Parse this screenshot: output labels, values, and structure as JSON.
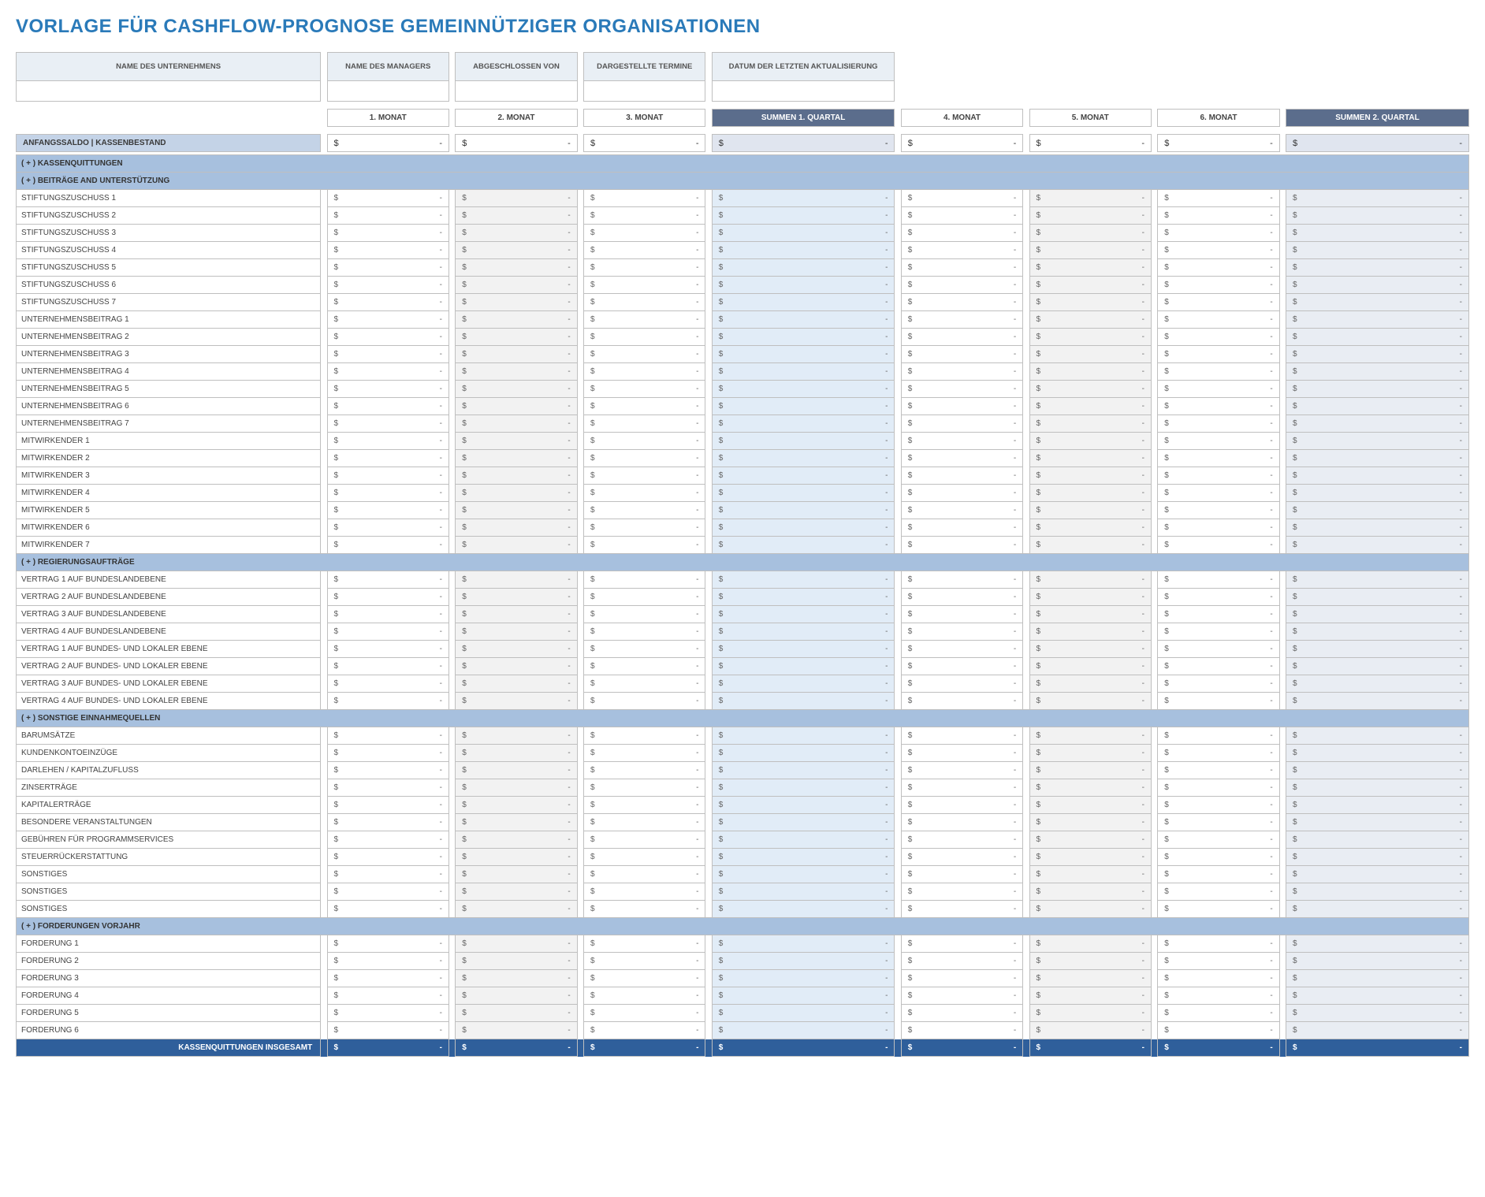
{
  "title": "VORLAGE FÜR CASHFLOW-PROGNOSE GEMEINNÜTZIGER ORGANISATIONEN",
  "meta": {
    "headers": [
      "NAME DES UNTERNEHMENS",
      "NAME DES MANAGERS",
      "ABGESCHLOSSEN VON",
      "DARGESTELLTE TERMINE",
      "DATUM DER LETZTEN AKTUALISIERUNG"
    ],
    "values": [
      "",
      "",
      "",
      "",
      ""
    ]
  },
  "columns": {
    "months_a": [
      "1. MONAT",
      "2. MONAT",
      "3. MONAT"
    ],
    "quarter_a": "SUMMEN 1. QUARTAL",
    "months_b": [
      "4. MONAT",
      "5. MONAT",
      "6. MONAT"
    ],
    "quarter_b": "SUMMEN 2. QUARTAL"
  },
  "anfangssaldo": "ANFANGSSALDO  |  KASSENBESTAND",
  "currency_symbol": "$",
  "dash": "-",
  "sections": [
    {
      "type": "header",
      "label": "( + ) KASSENQUITTUNGEN"
    },
    {
      "type": "header",
      "label": "( + ) BEITRÄGE AND UNTERSTÜTZUNG"
    },
    {
      "type": "row",
      "label": "STIFTUNGSZUSCHUSS 1"
    },
    {
      "type": "row",
      "label": "STIFTUNGSZUSCHUSS 2"
    },
    {
      "type": "row",
      "label": "STIFTUNGSZUSCHUSS 3"
    },
    {
      "type": "row",
      "label": "STIFTUNGSZUSCHUSS 4"
    },
    {
      "type": "row",
      "label": "STIFTUNGSZUSCHUSS 5"
    },
    {
      "type": "row",
      "label": "STIFTUNGSZUSCHUSS 6"
    },
    {
      "type": "row",
      "label": "STIFTUNGSZUSCHUSS 7"
    },
    {
      "type": "row",
      "label": "UNTERNEHMENSBEITRAG 1"
    },
    {
      "type": "row",
      "label": "UNTERNEHMENSBEITRAG 2"
    },
    {
      "type": "row",
      "label": "UNTERNEHMENSBEITRAG 3"
    },
    {
      "type": "row",
      "label": "UNTERNEHMENSBEITRAG 4"
    },
    {
      "type": "row",
      "label": "UNTERNEHMENSBEITRAG 5"
    },
    {
      "type": "row",
      "label": "UNTERNEHMENSBEITRAG 6"
    },
    {
      "type": "row",
      "label": "UNTERNEHMENSBEITRAG 7"
    },
    {
      "type": "row",
      "label": "MITWIRKENDER 1"
    },
    {
      "type": "row",
      "label": "MITWIRKENDER 2"
    },
    {
      "type": "row",
      "label": "MITWIRKENDER 3"
    },
    {
      "type": "row",
      "label": "MITWIRKENDER 4"
    },
    {
      "type": "row",
      "label": "MITWIRKENDER 5"
    },
    {
      "type": "row",
      "label": "MITWIRKENDER 6"
    },
    {
      "type": "row",
      "label": "MITWIRKENDER 7"
    },
    {
      "type": "header",
      "label": "( + ) REGIERUNGSAUFTRÄGE"
    },
    {
      "type": "row",
      "label": "VERTRAG 1 AUF BUNDESLANDEBENE"
    },
    {
      "type": "row",
      "label": "VERTRAG 2 AUF BUNDESLANDEBENE"
    },
    {
      "type": "row",
      "label": "VERTRAG 3 AUF BUNDESLANDEBENE"
    },
    {
      "type": "row",
      "label": "VERTRAG 4 AUF BUNDESLANDEBENE"
    },
    {
      "type": "row",
      "label": "VERTRAG 1 AUF BUNDES- UND LOKALER EBENE"
    },
    {
      "type": "row",
      "label": "VERTRAG 2 AUF BUNDES- UND LOKALER EBENE"
    },
    {
      "type": "row",
      "label": "VERTRAG 3 AUF BUNDES- UND LOKALER EBENE"
    },
    {
      "type": "row",
      "label": "VERTRAG 4 AUF BUNDES- UND LOKALER EBENE"
    },
    {
      "type": "header",
      "label": "( + ) SONSTIGE EINNAHMEQUELLEN"
    },
    {
      "type": "row",
      "label": "BARUMSÄTZE"
    },
    {
      "type": "row",
      "label": "KUNDENKONTOEINZÜGE"
    },
    {
      "type": "row",
      "label": "DARLEHEN / KAPITALZUFLUSS"
    },
    {
      "type": "row",
      "label": "ZINSERTRÄGE"
    },
    {
      "type": "row",
      "label": "KAPITALERTRÄGE"
    },
    {
      "type": "row",
      "label": "BESONDERE VERANSTALTUNGEN"
    },
    {
      "type": "row",
      "label": "GEBÜHREN FÜR PROGRAMMSERVICES"
    },
    {
      "type": "row",
      "label": "STEUERRÜCKERSTATTUNG"
    },
    {
      "type": "row",
      "label": "SONSTIGES"
    },
    {
      "type": "row",
      "label": "SONSTIGES"
    },
    {
      "type": "row",
      "label": "SONSTIGES"
    },
    {
      "type": "header",
      "label": "( + ) FORDERUNGEN VORJAHR"
    },
    {
      "type": "row",
      "label": "FORDERUNG 1"
    },
    {
      "type": "row",
      "label": "FORDERUNG 2"
    },
    {
      "type": "row",
      "label": "FORDERUNG 3"
    },
    {
      "type": "row",
      "label": "FORDERUNG 4"
    },
    {
      "type": "row",
      "label": "FORDERUNG 5"
    },
    {
      "type": "row",
      "label": "FORDERUNG 6"
    }
  ],
  "total_label": "KASSENQUITTUNGEN INSGESAMT",
  "colors": {
    "title": "#2a7ab9",
    "meta_head_bg": "#e9eff5",
    "quarter_head_bg": "#5b6d8c",
    "section_head_bg": "#a7c0de",
    "anfangs_label_bg": "#c4d3e7",
    "quarter_cell_bg": "#e1ecf7",
    "quarter_cell_bg2": "#e9edf3",
    "alt_month_bg": "#f2f2f2",
    "total_bg": "#2f5f9b",
    "border": "#bfbfbf"
  }
}
